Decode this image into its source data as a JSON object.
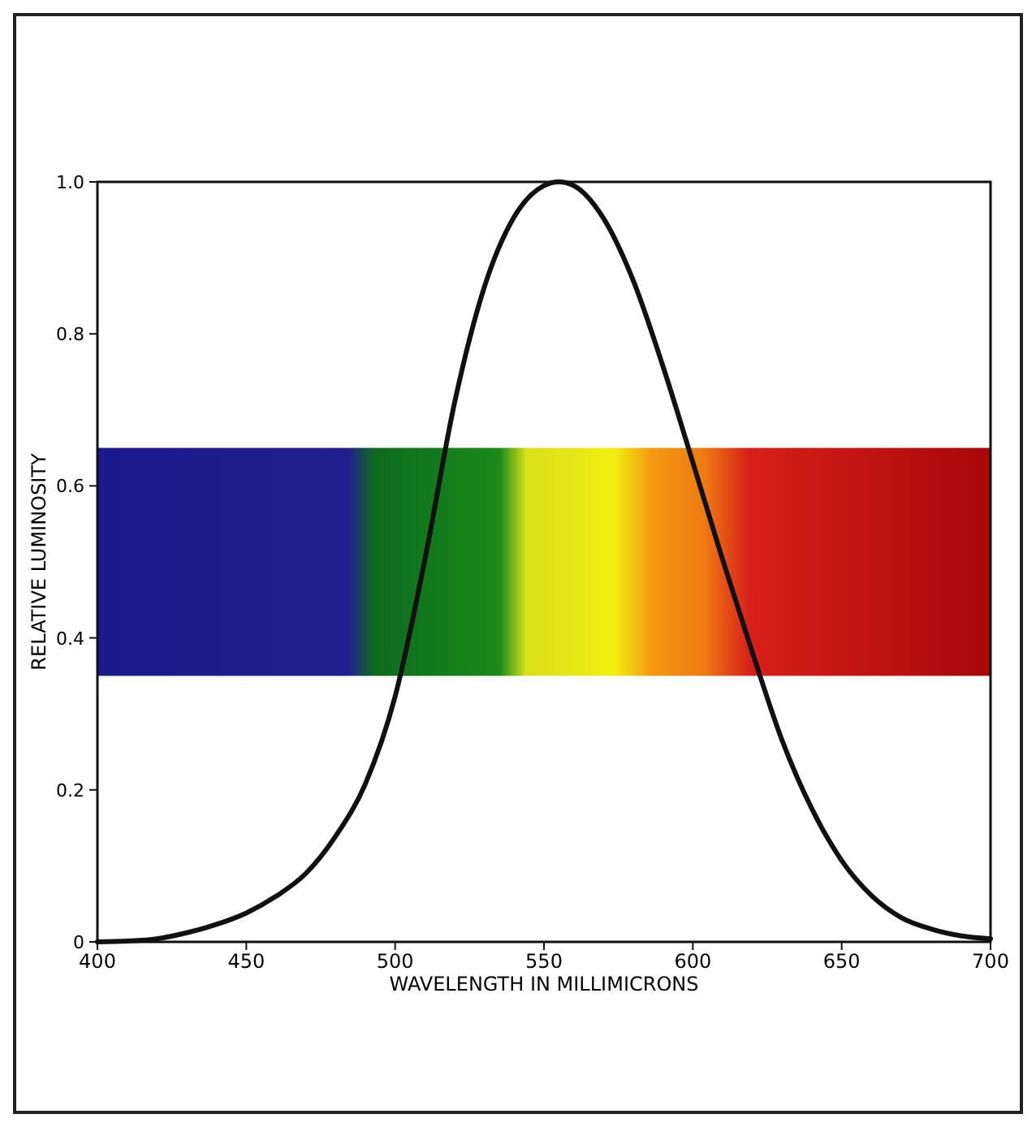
{
  "chart_data": {
    "type": "line",
    "xlabel": "WAVELENGTH IN MILLIMICRONS",
    "ylabel": "RELATIVE LUMINOSITY",
    "x": [
      400,
      410,
      420,
      430,
      440,
      450,
      460,
      470,
      480,
      490,
      500,
      510,
      520,
      530,
      540,
      550,
      555,
      560,
      570,
      580,
      590,
      600,
      610,
      620,
      630,
      640,
      650,
      660,
      670,
      680,
      690,
      700
    ],
    "series": [
      {
        "color": "#111111",
        "values": [
          0,
          0.001,
          0.004,
          0.012,
          0.023,
          0.038,
          0.06,
          0.09,
          0.139,
          0.208,
          0.323,
          0.503,
          0.71,
          0.862,
          0.954,
          0.995,
          1.0,
          0.995,
          0.952,
          0.87,
          0.757,
          0.631,
          0.503,
          0.381,
          0.265,
          0.175,
          0.107,
          0.061,
          0.032,
          0.017,
          0.008,
          0.004
        ]
      }
    ],
    "xlim": [
      400,
      700
    ],
    "ylim": [
      0,
      1
    ],
    "xticks": [
      400,
      450,
      500,
      550,
      600,
      650,
      700
    ],
    "yticks": [
      0,
      {
        "value": 0.2,
        "label": "0.2"
      },
      {
        "value": 0.4,
        "label": "0.4"
      },
      {
        "value": 0.6,
        "label": "0.6"
      },
      {
        "value": 0.8,
        "label": "0.8"
      },
      {
        "value": 1,
        "label": "1.0"
      }
    ],
    "grid": false,
    "marker": "none",
    "line_style": "solid"
  }
}
